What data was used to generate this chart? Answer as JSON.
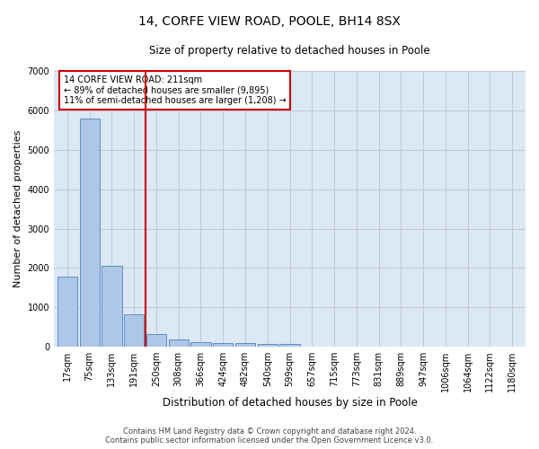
{
  "title": "14, CORFE VIEW ROAD, POOLE, BH14 8SX",
  "subtitle": "Size of property relative to detached houses in Poole",
  "xlabel": "Distribution of detached houses by size in Poole",
  "ylabel": "Number of detached properties",
  "footer_line1": "Contains HM Land Registry data © Crown copyright and database right 2024.",
  "footer_line2": "Contains public sector information licensed under the Open Government Licence v3.0.",
  "bar_labels": [
    "17sqm",
    "75sqm",
    "133sqm",
    "191sqm",
    "250sqm",
    "308sqm",
    "366sqm",
    "424sqm",
    "482sqm",
    "540sqm",
    "599sqm",
    "657sqm",
    "715sqm",
    "773sqm",
    "831sqm",
    "889sqm",
    "947sqm",
    "1006sqm",
    "1064sqm",
    "1122sqm",
    "1180sqm"
  ],
  "bar_values": [
    1780,
    5800,
    2060,
    820,
    330,
    190,
    110,
    100,
    100,
    75,
    60,
    0,
    0,
    0,
    0,
    0,
    0,
    0,
    0,
    0,
    0
  ],
  "bar_color": "#aec6e8",
  "bar_edge_color": "#5a8fc2",
  "grid_color": "#c0c8d8",
  "background_color": "#dce8f5",
  "red_line_x": 3.5,
  "annotation_text": "14 CORFE VIEW ROAD: 211sqm\n← 89% of detached houses are smaller (9,895)\n11% of semi-detached houses are larger (1,208) →",
  "annotation_box_color": "#ffffff",
  "annotation_border_color": "#cc0000",
  "ylim": [
    0,
    7000
  ],
  "yticks": [
    0,
    1000,
    2000,
    3000,
    4000,
    5000,
    6000,
    7000
  ],
  "title_fontsize": 10,
  "subtitle_fontsize": 8.5,
  "ylabel_fontsize": 8,
  "xlabel_fontsize": 8.5,
  "tick_fontsize": 7,
  "annotation_fontsize": 7,
  "footer_fontsize": 6
}
